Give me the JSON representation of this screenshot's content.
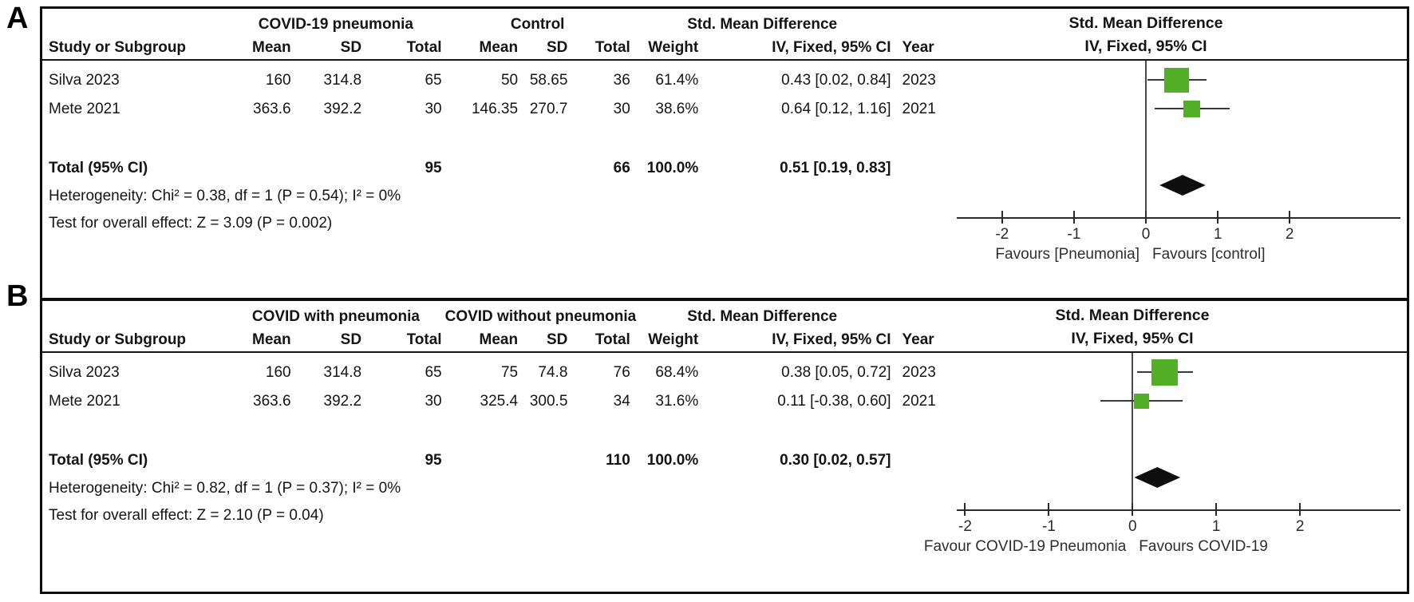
{
  "colors": {
    "square_green": "#53AF28",
    "diamond_black": "#0f0f0f",
    "line_gray": "#3a3a3a",
    "border_black": "#0d0d0d"
  },
  "chart_data": [
    {
      "type": "forest",
      "panel_label": "A",
      "effect_title": "Std. Mean Difference",
      "plot_title": "Std. Mean Difference",
      "plot_subtitle": "IV, Fixed, 95% CI",
      "group1": "COVID-19 pneumonia",
      "group2": "Control",
      "col_headers": {
        "study": "Study or Subgroup",
        "mean": "Mean",
        "sd": "SD",
        "total": "Total",
        "weight": "Weight",
        "effect": "IV, Fixed, 95% CI",
        "year": "Year"
      },
      "studies": [
        {
          "name": "Silva 2023",
          "mean1": "160",
          "sd1": "314.8",
          "total1": "65",
          "mean2": "50",
          "sd2": "58.65",
          "total2": "36",
          "weight": "61.4%",
          "estimate": "0.43 [0.02, 0.84]",
          "year": "2023",
          "smd": 0.43,
          "ci_low": 0.02,
          "ci_high": 0.84,
          "weight_pct": 61.4
        },
        {
          "name": "Mete 2021",
          "mean1": "363.6",
          "sd1": "392.2",
          "total1": "30",
          "mean2": "146.35",
          "sd2": "270.7",
          "total2": "30",
          "weight": "38.6%",
          "estimate": "0.64 [0.12, 1.16]",
          "year": "2021",
          "smd": 0.64,
          "ci_low": 0.12,
          "ci_high": 1.16,
          "weight_pct": 38.6
        }
      ],
      "total": {
        "label": "Total (95% CI)",
        "total1": "95",
        "total2": "66",
        "weight": "100.0%",
        "estimate": "0.51 [0.19, 0.83]",
        "smd": 0.51,
        "ci_low": 0.19,
        "ci_high": 0.83
      },
      "heterogeneity": "Heterogeneity: Chi² = 0.38, df = 1 (P = 0.54); I² = 0%",
      "overall_effect": "Test for overall effect: Z = 3.09 (P = 0.002)",
      "axis": {
        "ticks": [
          -2,
          -1,
          0,
          1,
          2
        ],
        "range": [
          -2.63,
          3.54
        ]
      },
      "favours_left": "Favours [Pneumonia]",
      "favours_right": "Favours [control]"
    },
    {
      "type": "forest",
      "panel_label": "B",
      "effect_title": "Std. Mean Difference",
      "plot_title": "Std. Mean Difference",
      "plot_subtitle": "IV, Fixed, 95% CI",
      "group1": "COVID with pneumonia",
      "group2": "COVID without pneumonia",
      "col_headers": {
        "study": "Study or Subgroup",
        "mean": "Mean",
        "sd": "SD",
        "total": "Total",
        "weight": "Weight",
        "effect": "IV, Fixed, 95% CI",
        "year": "Year"
      },
      "studies": [
        {
          "name": "Silva 2023",
          "mean1": "160",
          "sd1": "314.8",
          "total1": "65",
          "mean2": "75",
          "sd2": "74.8",
          "total2": "76",
          "weight": "68.4%",
          "estimate": "0.38 [0.05, 0.72]",
          "year": "2023",
          "smd": 0.38,
          "ci_low": 0.05,
          "ci_high": 0.72,
          "weight_pct": 68.4
        },
        {
          "name": "Mete 2021",
          "mean1": "363.6",
          "sd1": "392.2",
          "total1": "30",
          "mean2": "325.4",
          "sd2": "300.5",
          "total2": "34",
          "weight": "31.6%",
          "estimate": "0.11 [-0.38, 0.60]",
          "year": "2021",
          "smd": 0.11,
          "ci_low": -0.38,
          "ci_high": 0.6,
          "weight_pct": 31.6
        }
      ],
      "total": {
        "label": "Total (95% CI)",
        "total1": "95",
        "total2": "110",
        "weight": "100.0%",
        "estimate": "0.30 [0.02, 0.57]",
        "smd": 0.3,
        "ci_low": 0.02,
        "ci_high": 0.57
      },
      "heterogeneity": "Heterogeneity: Chi² = 0.82, df = 1 (P = 0.37); I² = 0%",
      "overall_effect": "Test for overall effect: Z = 2.10 (P = 0.04)",
      "axis": {
        "ticks": [
          -2,
          -1,
          0,
          1,
          2
        ],
        "range": [
          -2.1,
          3.2
        ]
      },
      "favours_left": "Favour COVID-19 Pneumonia",
      "favours_right": "Favours COVID-19"
    }
  ]
}
